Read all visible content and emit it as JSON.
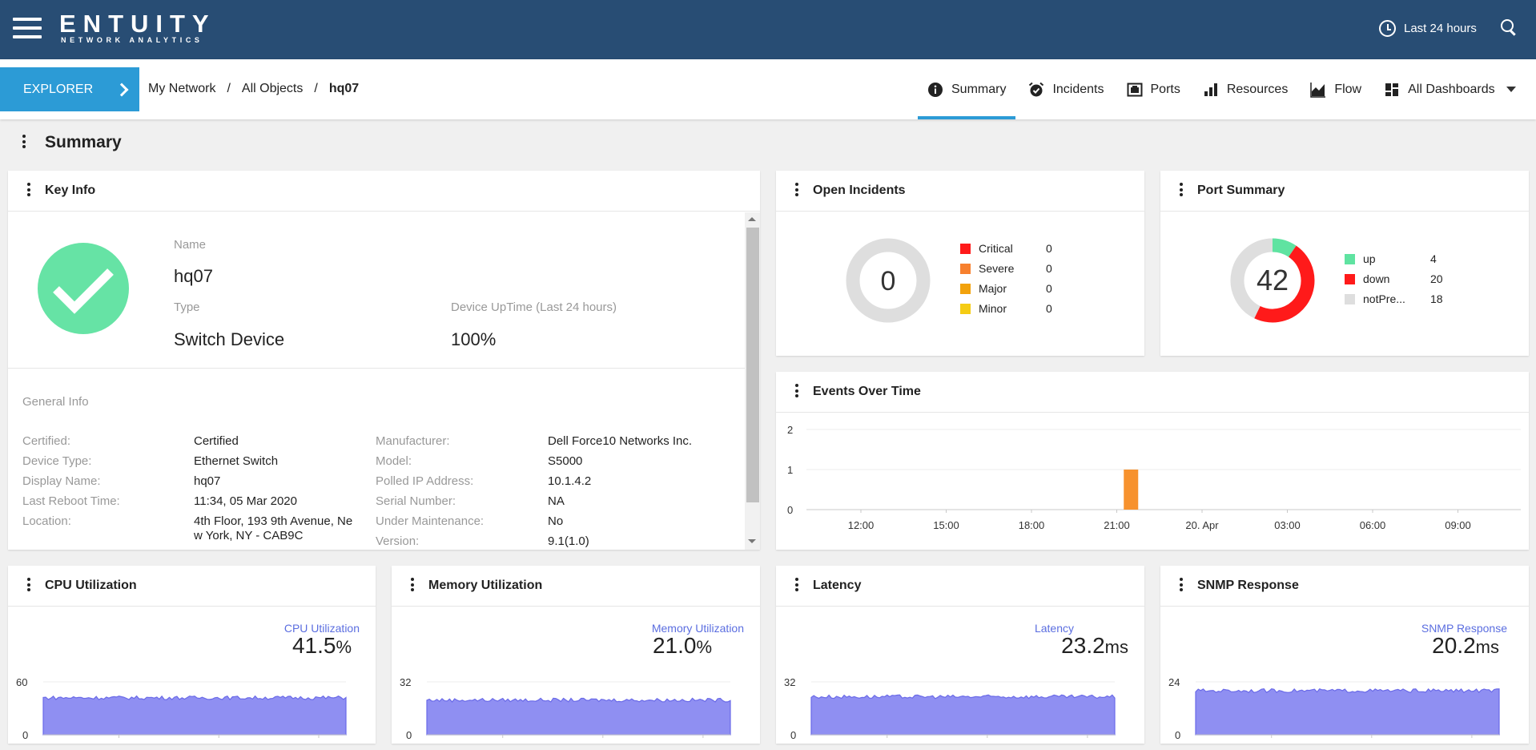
{
  "brand": {
    "name": "ENTUITY",
    "tagline": "NETWORK ANALYTICS"
  },
  "header": {
    "time_range": "Last 24 hours"
  },
  "nav": {
    "explorer": "EXPLORER",
    "breadcrumb": [
      "My Network",
      "/",
      "All Objects",
      "/",
      "hq07"
    ],
    "tabs": [
      {
        "label": "Summary",
        "icon": "info-icon"
      },
      {
        "label": "Incidents",
        "icon": "alarm-icon"
      },
      {
        "label": "Ports",
        "icon": "ports-icon"
      },
      {
        "label": "Resources",
        "icon": "bar-chart-icon"
      },
      {
        "label": "Flow",
        "icon": "area-chart-icon"
      },
      {
        "label": "All Dashboards",
        "icon": "dashboard-grid-icon"
      }
    ]
  },
  "page": {
    "title": "Summary"
  },
  "key_info": {
    "title": "Key Info",
    "status_icon": "check-circle-icon",
    "status_color": "#66e3a5",
    "name_label": "Name",
    "name": "hq07",
    "type_label": "Type",
    "type": "Switch Device",
    "uptime_label": "Device UpTime (Last 24 hours)",
    "uptime": "100%",
    "general_label": "General Info",
    "left": [
      {
        "k": "Certified:",
        "v": "Certified"
      },
      {
        "k": "Device Type:",
        "v": "Ethernet Switch"
      },
      {
        "k": "Display Name:",
        "v": "hq07"
      },
      {
        "k": "Last Reboot Time:",
        "v": "11:34, 05 Mar 2020"
      },
      {
        "k": "Location:",
        "v": "4th Floor, 193 9th Avenue, Ne",
        "v2": "w York, NY - CAB9C"
      }
    ],
    "right": [
      {
        "k": "Manufacturer:",
        "v": "Dell Force10 Networks Inc."
      },
      {
        "k": "Model:",
        "v": "S5000"
      },
      {
        "k": "Polled IP Address:",
        "v": "10.1.4.2"
      },
      {
        "k": "Serial Number:",
        "v": "NA"
      },
      {
        "k": "Under Maintenance:",
        "v": "No"
      },
      {
        "k": "Version:",
        "v": "9.1(1.0)"
      }
    ]
  },
  "open_incidents": {
    "title": "Open Incidents",
    "total": "0",
    "items": [
      {
        "label": "Critical",
        "count": "0",
        "color": "#ff1a1a"
      },
      {
        "label": "Severe",
        "count": "0",
        "color": "#f7802e"
      },
      {
        "label": "Major",
        "count": "0",
        "color": "#f2a20c"
      },
      {
        "label": "Minor",
        "count": "0",
        "color": "#f5cc14"
      }
    ]
  },
  "port_summary": {
    "title": "Port Summary",
    "total": "42",
    "items": [
      {
        "label": "up",
        "count": "4",
        "value": 4,
        "color": "#5fe3a1"
      },
      {
        "label": "down",
        "count": "20",
        "value": 20,
        "color": "#ff1a1a"
      },
      {
        "label": "notPre...",
        "count": "18",
        "value": 18,
        "color": "#dedede"
      }
    ]
  },
  "chart_data": [
    {
      "type": "bar",
      "title": "Events Over Time",
      "x": [
        "12:00",
        "15:00",
        "18:00",
        "21:00",
        "20. Apr",
        "03:00",
        "06:00",
        "09:00"
      ],
      "ylim": [
        0,
        2
      ],
      "yticks": [
        "0",
        "1",
        "2"
      ],
      "values": [
        {
          "x": "21:30",
          "y": 1,
          "color": "#f7922e"
        }
      ]
    },
    {
      "type": "area",
      "title": "CPU Utilization",
      "series_label": "CPU Utilization",
      "value": "41.5",
      "unit": "%",
      "ylim": [
        0,
        60
      ],
      "yticks": [
        "0",
        "60"
      ],
      "level": 42
    },
    {
      "type": "area",
      "title": "Memory Utilization",
      "series_label": "Memory Utilization",
      "value": "21.0",
      "unit": "%",
      "ylim": [
        0,
        32
      ],
      "yticks": [
        "0",
        "32"
      ],
      "level": 21
    },
    {
      "type": "area",
      "title": "Latency",
      "series_label": "Latency",
      "value": "23.2",
      "unit": "ms",
      "ylim": [
        0,
        32
      ],
      "yticks": [
        "0",
        "32"
      ],
      "level": 23
    },
    {
      "type": "area",
      "title": "SNMP Response",
      "series_label": "SNMP Response",
      "value": "20.2",
      "unit": "ms",
      "ylim": [
        0,
        24
      ],
      "yticks": [
        "0",
        "24"
      ],
      "level": 20
    }
  ],
  "colors": {
    "header": "#284d74",
    "accent": "#2c9bd6",
    "series_fill": "#8f8ff2",
    "series_line": "#6a6ae8"
  }
}
